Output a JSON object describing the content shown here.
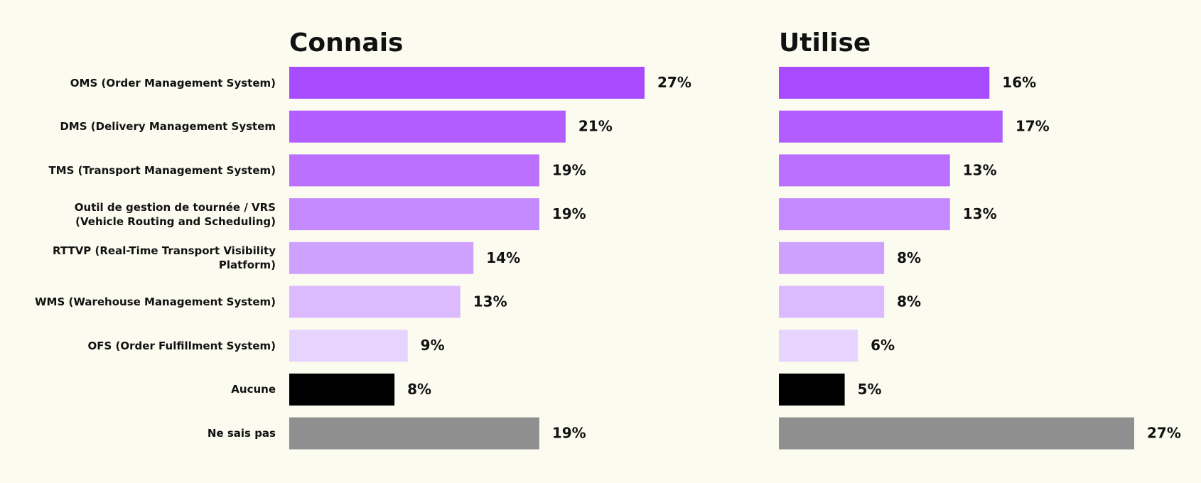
{
  "chart_data": [
    {
      "type": "bar",
      "orientation": "horizontal",
      "title": "Connais",
      "categories": [
        "OMS (Order Management System)",
        "DMS (Delivery Management System",
        "TMS (Transport Management System)",
        "Outil de gestion de tournée / VRS\n(Vehicle Routing and Scheduling)",
        "RTTVP (Real-Time Transport Visibility\nPlatform)",
        "WMS (Warehouse Management System)",
        "OFS (Order Fulfillment System)",
        "Aucune",
        "Ne sais pas"
      ],
      "values": [
        27,
        21,
        19,
        19,
        14,
        13,
        9,
        8,
        19
      ],
      "value_labels": [
        "27%",
        "21%",
        "19%",
        "19%",
        "14%",
        "13%",
        "9%",
        "8%",
        "19%"
      ],
      "colors": [
        "#a84bff",
        "#b25dff",
        "#bb70ff",
        "#c488ff",
        "#cfa1ff",
        "#dbbafe",
        "#e6d4ff",
        "#000000",
        "#8f8f8f"
      ]
    },
    {
      "type": "bar",
      "orientation": "horizontal",
      "title": "Utilise",
      "values": [
        16,
        17,
        13,
        13,
        8,
        8,
        6,
        5,
        27
      ],
      "value_labels": [
        "16%",
        "17%",
        "13%",
        "13%",
        "8%",
        "8%",
        "6%",
        "5%",
        "27%"
      ],
      "colors": [
        "#a84bff",
        "#b25dff",
        "#bb70ff",
        "#c488ff",
        "#cfa1ff",
        "#dbbafe",
        "#e6d4ff",
        "#000000",
        "#8f8f8f"
      ]
    }
  ]
}
